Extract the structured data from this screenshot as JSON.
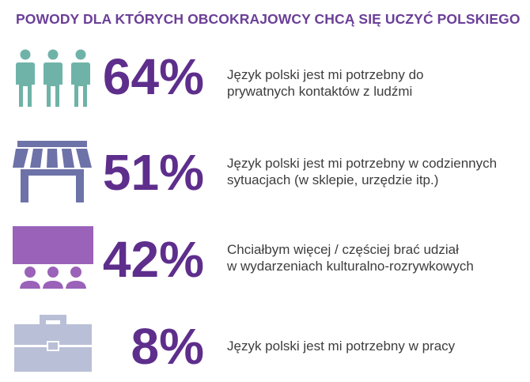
{
  "title": "POWODY DLA KTÓRYCH OBCOKRAJOWCY CHCĄ SIĘ UCZYĆ POLSKIEGO",
  "chart_data": {
    "type": "infographic",
    "title": "POWODY DLA KTÓRYCH OBCOKRAJOWCY CHCĄ SIĘ UCZYĆ POLSKIEGO",
    "items": [
      {
        "percent_label": "64%",
        "value": 64,
        "icon": "people-icon",
        "color": "#6fb3a8",
        "lines": [
          "Język polski jest mi potrzebny do",
          "prywatnych kontaktów z ludźmi"
        ]
      },
      {
        "percent_label": "51%",
        "value": 51,
        "icon": "shop-icon",
        "color": "#6d72a8",
        "lines": [
          "Język polski jest mi potrzebny w codziennych",
          "sytuacjach (w sklepie, urzędzie itp.)"
        ]
      },
      {
        "percent_label": "42%",
        "value": 42,
        "icon": "audience-icon",
        "color": "#9a62b8",
        "lines": [
          "Chciałbym więcej / częściej brać udział",
          "w wydarzeniach kulturalno-rozrywkowych"
        ]
      },
      {
        "percent_label": "8%",
        "value": 8,
        "icon": "briefcase-icon",
        "color": "#b9bfd6",
        "lines": [
          "Język polski jest mi potrzebny w pracy"
        ]
      }
    ]
  }
}
